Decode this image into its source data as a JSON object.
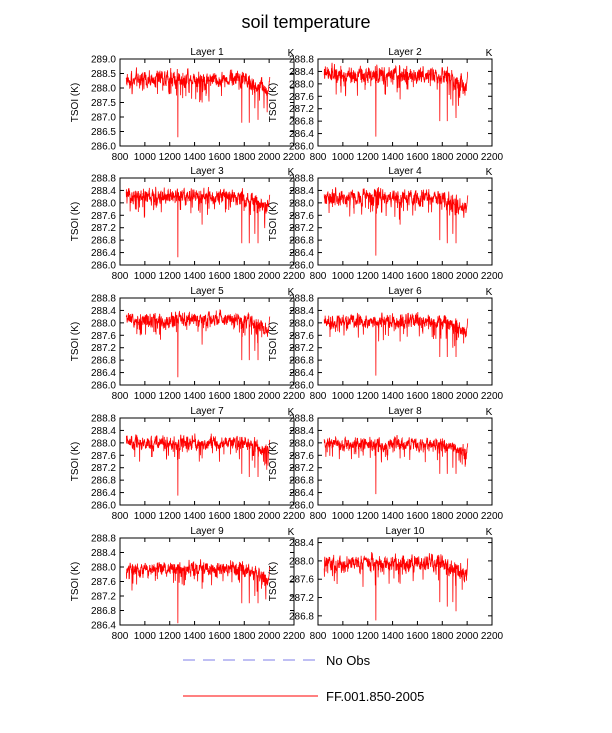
{
  "figure_title": "soil temperature",
  "legend": [
    {
      "label": "No Obs",
      "color": "#9999ee",
      "style": "dashed"
    },
    {
      "label": "FF.001.850-2005",
      "color": "#ff0000",
      "style": "solid"
    }
  ],
  "colors": {
    "series": "#ff0000",
    "axis": "#000000",
    "background": "#ffffff"
  },
  "chart_data": [
    {
      "type": "line",
      "title": "Layer 1",
      "unit_label": "K",
      "xlabel": "",
      "ylabel": "TSOI  (K)",
      "xlim": [
        800,
        2200
      ],
      "xticks": [
        800,
        1000,
        1200,
        1400,
        1600,
        1800,
        2000,
        2200
      ],
      "ylim": [
        286.0,
        289.0
      ],
      "yticks": [
        "286.0",
        "286.5",
        "287.0",
        "287.5",
        "288.0",
        "288.5",
        "289.0"
      ],
      "series": [
        {
          "name": "FF.001.850-2005",
          "x_range": [
            850,
            2005
          ],
          "mean": 288.3,
          "noise": 0.22,
          "dips": [
            [
              1265,
              286.3
            ],
            [
              1460,
              287.5
            ],
            [
              1780,
              286.8
            ],
            [
              1840,
              286.8
            ],
            [
              1885,
              287.3
            ],
            [
              1910,
              286.9
            ]
          ],
          "late_trend": -0.7
        }
      ]
    },
    {
      "type": "line",
      "title": "Layer 2",
      "unit_label": "K",
      "xlabel": "",
      "ylabel": "TSOI  (K)",
      "xlim": [
        800,
        2200
      ],
      "xticks": [
        800,
        1000,
        1200,
        1400,
        1600,
        1800,
        2000,
        2200
      ],
      "ylim": [
        286.0,
        288.8
      ],
      "yticks": [
        "286.0",
        "286.4",
        "286.8",
        "287.2",
        "287.6",
        "288.0",
        "288.4",
        "288.8"
      ],
      "series": [
        {
          "name": "FF.001.850-2005",
          "x_range": [
            850,
            2005
          ],
          "mean": 288.3,
          "noise": 0.2,
          "dips": [
            [
              1265,
              286.3
            ],
            [
              1460,
              287.5
            ],
            [
              1780,
              286.8
            ],
            [
              1840,
              286.8
            ],
            [
              1885,
              287.3
            ],
            [
              1910,
              286.9
            ]
          ],
          "late_trend": -0.7
        }
      ]
    },
    {
      "type": "line",
      "title": "Layer 3",
      "unit_label": "K",
      "xlabel": "",
      "ylabel": "TSOI  (K)",
      "xlim": [
        800,
        2200
      ],
      "xticks": [
        800,
        1000,
        1200,
        1400,
        1600,
        1800,
        2000,
        2200
      ],
      "ylim": [
        286.0,
        288.8
      ],
      "yticks": [
        "286.0",
        "286.4",
        "286.8",
        "287.2",
        "287.6",
        "288.0",
        "288.4",
        "288.8"
      ],
      "series": [
        {
          "name": "FF.001.850-2005",
          "x_range": [
            850,
            2005
          ],
          "mean": 288.2,
          "noise": 0.2,
          "dips": [
            [
              1265,
              286.25
            ],
            [
              1460,
              287.3
            ],
            [
              1780,
              286.7
            ],
            [
              1840,
              286.7
            ],
            [
              1885,
              287.0
            ],
            [
              1910,
              286.7
            ]
          ],
          "late_trend": -0.6
        }
      ]
    },
    {
      "type": "line",
      "title": "Layer 4",
      "unit_label": "K",
      "xlabel": "",
      "ylabel": "TSOI  (K)",
      "xlim": [
        800,
        2200
      ],
      "xticks": [
        800,
        1000,
        1200,
        1400,
        1600,
        1800,
        2000,
        2200
      ],
      "ylim": [
        286.0,
        288.8
      ],
      "yticks": [
        "286.0",
        "286.4",
        "286.8",
        "287.2",
        "287.6",
        "288.0",
        "288.4",
        "288.8"
      ],
      "series": [
        {
          "name": "FF.001.850-2005",
          "x_range": [
            850,
            2005
          ],
          "mean": 288.15,
          "noise": 0.2,
          "dips": [
            [
              1265,
              286.3
            ],
            [
              1460,
              287.3
            ],
            [
              1780,
              286.8
            ],
            [
              1840,
              286.7
            ],
            [
              1885,
              287.0
            ],
            [
              1910,
              286.7
            ]
          ],
          "late_trend": -0.6
        }
      ]
    },
    {
      "type": "line",
      "title": "Layer 5",
      "unit_label": "K",
      "xlabel": "",
      "ylabel": "TSOI  (K)",
      "xlim": [
        800,
        2200
      ],
      "xticks": [
        800,
        1000,
        1200,
        1400,
        1600,
        1800,
        2000,
        2200
      ],
      "ylim": [
        286.0,
        288.8
      ],
      "yticks": [
        "286.0",
        "286.4",
        "286.8",
        "287.2",
        "287.6",
        "288.0",
        "288.4",
        "288.8"
      ],
      "series": [
        {
          "name": "FF.001.850-2005",
          "x_range": [
            850,
            2005
          ],
          "mean": 288.1,
          "noise": 0.18,
          "dips": [
            [
              1265,
              286.25
            ],
            [
              1460,
              287.3
            ],
            [
              1780,
              286.8
            ],
            [
              1840,
              286.8
            ],
            [
              1885,
              287.1
            ],
            [
              1910,
              286.8
            ]
          ],
          "late_trend": -0.6
        }
      ]
    },
    {
      "type": "line",
      "title": "Layer 6",
      "unit_label": "K",
      "xlabel": "",
      "ylabel": "TSOI  (K)",
      "xlim": [
        800,
        2200
      ],
      "xticks": [
        800,
        1000,
        1200,
        1400,
        1600,
        1800,
        2000,
        2200
      ],
      "ylim": [
        286.0,
        288.8
      ],
      "yticks": [
        "286.0",
        "286.4",
        "286.8",
        "287.2",
        "287.6",
        "288.0",
        "288.4",
        "288.8"
      ],
      "series": [
        {
          "name": "FF.001.850-2005",
          "x_range": [
            850,
            2005
          ],
          "mean": 288.05,
          "noise": 0.18,
          "dips": [
            [
              1265,
              286.3
            ],
            [
              1460,
              287.4
            ],
            [
              1780,
              286.9
            ],
            [
              1840,
              286.9
            ],
            [
              1885,
              287.2
            ],
            [
              1910,
              286.9
            ]
          ],
          "late_trend": -0.6
        }
      ]
    },
    {
      "type": "line",
      "title": "Layer 7",
      "unit_label": "K",
      "xlabel": "",
      "ylabel": "TSOI  (K)",
      "xlim": [
        800,
        2200
      ],
      "xticks": [
        800,
        1000,
        1200,
        1400,
        1600,
        1800,
        2000,
        2200
      ],
      "ylim": [
        286.0,
        288.8
      ],
      "yticks": [
        "286.0",
        "286.4",
        "286.8",
        "287.2",
        "287.6",
        "288.0",
        "288.4",
        "288.8"
      ],
      "series": [
        {
          "name": "FF.001.850-2005",
          "x_range": [
            850,
            2005
          ],
          "mean": 288.0,
          "noise": 0.17,
          "dips": [
            [
              1265,
              286.3
            ],
            [
              1460,
              287.5
            ],
            [
              1780,
              287.0
            ],
            [
              1840,
              286.9
            ],
            [
              1885,
              287.2
            ],
            [
              1910,
              286.9
            ]
          ],
          "late_trend": -0.55
        }
      ]
    },
    {
      "type": "line",
      "title": "Layer 8",
      "unit_label": "K",
      "xlabel": "",
      "ylabel": "TSOI  (K)",
      "xlim": [
        800,
        2200
      ],
      "xticks": [
        800,
        1000,
        1200,
        1400,
        1600,
        1800,
        2000,
        2200
      ],
      "ylim": [
        286.0,
        288.8
      ],
      "yticks": [
        "286.0",
        "286.4",
        "286.8",
        "287.2",
        "287.6",
        "288.0",
        "288.4",
        "288.8"
      ],
      "series": [
        {
          "name": "FF.001.850-2005",
          "x_range": [
            850,
            2005
          ],
          "mean": 287.95,
          "noise": 0.16,
          "dips": [
            [
              1265,
              286.35
            ],
            [
              1460,
              287.5
            ],
            [
              1780,
              287.0
            ],
            [
              1840,
              287.0
            ],
            [
              1885,
              287.2
            ],
            [
              1910,
              287.0
            ]
          ],
          "late_trend": -0.5
        }
      ]
    },
    {
      "type": "line",
      "title": "Layer 9",
      "unit_label": "K",
      "xlabel": "",
      "ylabel": "TSOI  (K)",
      "xlim": [
        800,
        2200
      ],
      "xticks": [
        800,
        1000,
        1200,
        1400,
        1600,
        1800,
        2000,
        2200
      ],
      "ylim": [
        286.4,
        288.8
      ],
      "yticks": [
        "286.4",
        "286.8",
        "287.2",
        "287.6",
        "288.0",
        "288.4",
        "288.8"
      ],
      "series": [
        {
          "name": "FF.001.850-2005",
          "x_range": [
            850,
            2005
          ],
          "mean": 287.95,
          "noise": 0.15,
          "dips": [
            [
              1265,
              286.45
            ],
            [
              1460,
              287.4
            ],
            [
              1780,
              287.0
            ],
            [
              1840,
              287.0
            ],
            [
              1885,
              287.2
            ],
            [
              1910,
              287.0
            ]
          ],
          "late_trend": -0.5
        }
      ]
    },
    {
      "type": "line",
      "title": "Layer 10",
      "unit_label": "K",
      "xlabel": "",
      "ylabel": "TSOI  (K)",
      "xlim": [
        800,
        2200
      ],
      "xticks": [
        800,
        1000,
        1200,
        1400,
        1600,
        1800,
        2000,
        2200
      ],
      "ylim": [
        286.6,
        288.5
      ],
      "yticks": [
        "286.8",
        "287.2",
        "287.6",
        "288.0",
        "288.4"
      ],
      "series": [
        {
          "name": "FF.001.850-2005",
          "x_range": [
            850,
            2005
          ],
          "mean": 287.95,
          "noise": 0.14,
          "dips": [
            [
              1265,
              286.7
            ],
            [
              1460,
              287.5
            ],
            [
              1780,
              287.1
            ],
            [
              1840,
              287.0
            ],
            [
              1885,
              287.1
            ],
            [
              1910,
              286.9
            ]
          ],
          "late_trend": -0.45
        }
      ]
    }
  ]
}
